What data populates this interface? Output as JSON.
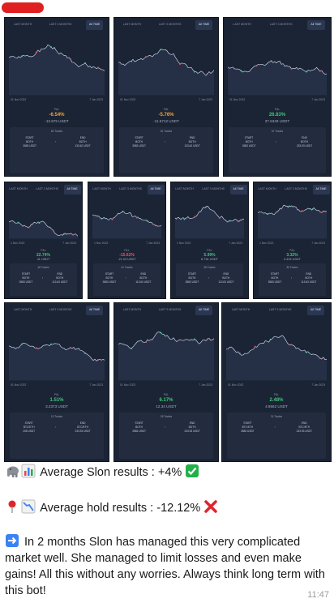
{
  "screen": {
    "sender_name_redacted": true,
    "message_time": "11:47"
  },
  "card_tabs": [
    "LAST MONTH",
    "LAST 3 MONTHS",
    "All TIME"
  ],
  "cards": [
    {
      "date_start": "01 Nov 2022",
      "date_end": "7 Jan 2023",
      "pct_label": "P&L",
      "pct": "-6.54%",
      "pct_color": "#f0a33a",
      "usdt": "-13.675 USDT",
      "trades": "82 Trades",
      "start_label": "START",
      "start_value1": "BOTH",
      "start_value2": "3583 USDT",
      "end_label": "END",
      "end_value1": "BOTH",
      "end_value2": "133.62 USDT"
    },
    {
      "date_start": "01 Nov 2022",
      "date_end": "7 Jan 2023",
      "pct_label": "P&L",
      "pct": "-5.76%",
      "pct_color": "#f0a33a",
      "usdt": "-11.5712 USDT",
      "trades": "81 Trades",
      "start_label": "START",
      "start_value1": "BOTH",
      "start_value2": "3583 USDT",
      "end_label": "END",
      "end_value1": "BOTH",
      "end_value2": "133.62 USDT"
    },
    {
      "date_start": "01 Nov 2022",
      "date_end": "7 Jan 2023",
      "pct_label": "P&L",
      "pct": "26.83%",
      "pct_color": "#3fc47a",
      "usdt": "37.6349 USDT",
      "trades": "57 Trades",
      "start_label": "START",
      "start_value1": "BOTH",
      "start_value2": "3583 USDT",
      "end_label": "END",
      "end_value1": "BOTH",
      "end_value2": "233.93 USDT"
    },
    {
      "date_start": "1 Nov 2022",
      "date_end": "7 Jan 2023",
      "pct_label": "P&L",
      "pct": "22.74%",
      "pct_color": "#3fc47a",
      "usdt": "41 USDT",
      "trades": "48 Trades",
      "start_label": "START",
      "start_value1": "BOTH",
      "start_value2": "3583 USDT",
      "end_label": "END",
      "end_value1": "BOTH",
      "end_value2": "113.63 USDT"
    },
    {
      "date_start": "1 Nov 2022",
      "date_end": "7 Jan 2023",
      "pct_label": "P&L",
      "pct": "-15.62%",
      "pct_color": "#e3576a",
      "usdt": "-21.03 USDT",
      "trades": "41 Trades",
      "start_label": "START",
      "start_value1": "BOTH",
      "start_value2": "3583 USDT",
      "end_label": "END",
      "end_value1": "BOTH",
      "end_value2": "113.63 USDT"
    },
    {
      "date_start": "1 Nov 2022",
      "date_end": "7 Jan 2023",
      "pct_label": "P&L",
      "pct": "5.99%",
      "pct_color": "#3fc47a",
      "usdt": "8.734 USDT",
      "trades": "38 Trades",
      "start_label": "START",
      "start_value1": "BOTH",
      "start_value2": "3583 USDT",
      "end_label": "END",
      "end_value1": "BOTH",
      "end_value2": "113.63 USDT"
    },
    {
      "date_start": "1 Nov 2022",
      "date_end": "7 Jan 2023",
      "pct_label": "P&L",
      "pct": "3.32%",
      "pct_color": "#3fc47a",
      "usdt": "3.433 USDT",
      "trades": "36 Trades",
      "start_label": "START",
      "start_value1": "BOTH",
      "start_value2": "3583 USDT",
      "end_label": "END",
      "end_value1": "BOTH",
      "end_value2": "113.63 USDT"
    },
    {
      "date_start": "01 Nov 2022",
      "date_end": "7 Jan 2023",
      "pct_label": "P&L",
      "pct": "1.51%",
      "pct_color": "#3fc47a",
      "usdt": "3.2373 USDT",
      "trades": "19 Trades",
      "start_label": "START",
      "start_value1": "BTC/ETH",
      "start_value2": "208 USDT",
      "end_label": "END",
      "end_value1": "BTC/ETH",
      "end_value2": "233.93 USDT"
    },
    {
      "date_start": "01 Nov 2022",
      "date_end": "7 Jan 2023",
      "pct_label": "P&L",
      "pct": "6.17%",
      "pct_color": "#3fc47a",
      "usdt": "12.34 USDT",
      "trades": "28 Trades",
      "start_label": "START",
      "start_value1": "BOTH",
      "start_value2": "3583 USDT",
      "end_label": "END",
      "end_value1": "BOTH",
      "end_value2": "233.93 USDT"
    },
    {
      "date_start": "01 Nov 2022",
      "date_end": "7 Jan 2023",
      "pct_label": "P&L",
      "pct": "2.48%",
      "pct_color": "#3fc47a",
      "usdt": "4.9562 USDT",
      "trades": "31 Trades",
      "start_label": "START",
      "start_value1": "BTC/ETH",
      "start_value2": "3583 USDT",
      "end_label": "END",
      "end_value1": "BTC/ETH",
      "end_value2": "233.93 USDT"
    }
  ],
  "message": {
    "line1_icons": [
      "elephant-icon",
      "bar-chart-icon"
    ],
    "line1_text": "Average Slon results : +4%",
    "line1_end_icon": "check-mark-icon",
    "line2_icons": [
      "pin-icon",
      "chart-decreasing-icon"
    ],
    "line2_text": "Average hold results : -12.12%",
    "line2_end_icon": "cross-mark-icon",
    "line3_icon": "right-arrow-icon",
    "line3_text": "In 2 months Slon has managed this very complicated market well. She managed to limit losses and even make gains! All this without any worries. Always think long term with this bot!"
  },
  "colors": {
    "card_bg": "#1b2434",
    "line": "#c8d3e8",
    "positive": "#3fc47a",
    "negative": "#f0a33a",
    "check": "#22b04b",
    "cross": "#e0242c"
  }
}
